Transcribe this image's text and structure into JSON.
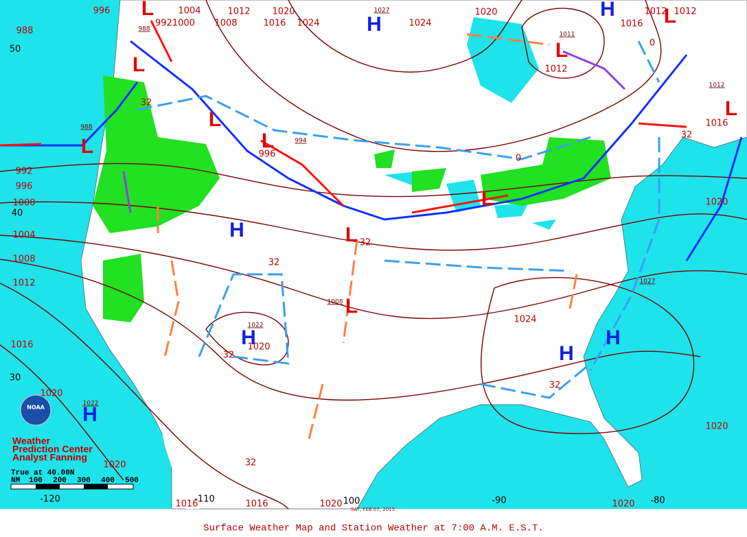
{
  "map": {
    "caption": "Surface Weather Map and Station Weather at 7:00 A.M. E.S.T.",
    "credit": [
      "Weather",
      "Prediction Center",
      "Analyst Fanning"
    ],
    "logo": "NOAA",
    "date_stamp": "SAT, FEB 07, 2015",
    "scale": {
      "title": "True at 40.00N",
      "unit": "NM",
      "ticks": [
        "100",
        "200",
        "300",
        "400",
        "500"
      ]
    },
    "latitudes": [
      "50",
      "40",
      "30"
    ],
    "longitudes": [
      "-120",
      "-110",
      "100",
      "-90",
      "-80"
    ],
    "isobar_labels": [
      "988",
      "992",
      "996",
      "1000",
      "1004",
      "1008",
      "1012",
      "1016",
      "1020",
      "1020",
      "1016",
      "1016",
      "1020",
      "1020",
      "1020",
      "1020",
      "1016",
      "1016",
      "1020",
      "1024",
      "1024",
      "1020",
      "1016",
      "1012",
      "1008",
      "996",
      "9921000",
      "1004",
      "1012",
      "1024",
      "1020",
      "1012",
      "1012",
      "996"
    ],
    "small_labels": [
      "988",
      "988",
      "1027",
      "1011",
      "1012",
      "994",
      "1022",
      "1022",
      "1027",
      "1008"
    ],
    "front_labels": [
      "32",
      "32",
      "32",
      "32",
      "32",
      "32",
      "32",
      "0",
      "0"
    ],
    "centers": [
      "H",
      "H",
      "H",
      "H",
      "H",
      "H",
      "H",
      "L",
      "L",
      "L",
      "L",
      "L",
      "L",
      "L",
      "L",
      "L",
      "L",
      "L"
    ]
  }
}
